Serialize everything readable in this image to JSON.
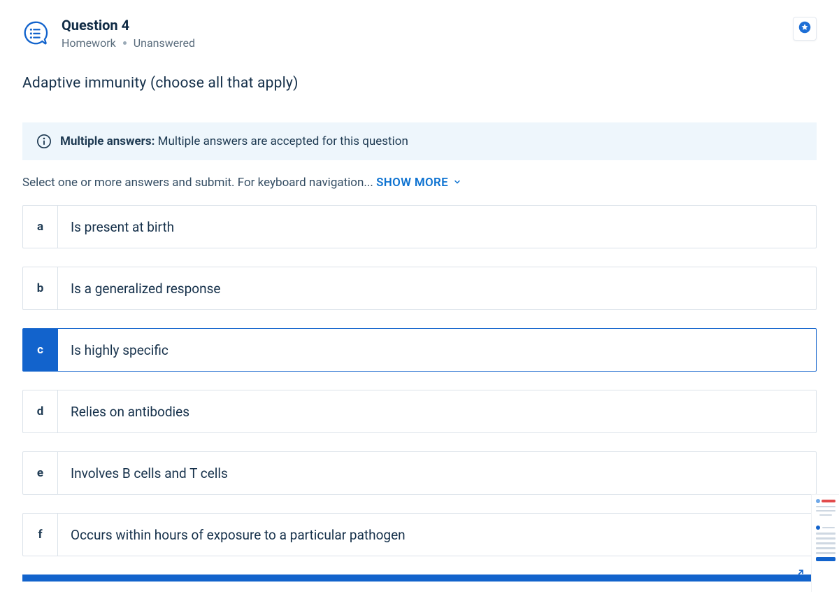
{
  "header": {
    "title": "Question 4",
    "meta_left": "Homework",
    "meta_right": "Unanswered"
  },
  "prompt": "Adaptive immunity (choose all that apply)",
  "info_banner": {
    "label": "Multiple answers:",
    "text": "Multiple answers are accepted for this question"
  },
  "instructions": {
    "text": "Select one or more answers and submit. For keyboard navigation...",
    "show_more": "SHOW MORE"
  },
  "options": [
    {
      "letter": "a",
      "text": "Is present at birth",
      "selected": false
    },
    {
      "letter": "b",
      "text": "Is a generalized response",
      "selected": false
    },
    {
      "letter": "c",
      "text": "Is highly specific",
      "selected": true
    },
    {
      "letter": "d",
      "text": "Relies on antibodies",
      "selected": false
    },
    {
      "letter": "e",
      "text": "Involves B cells and T cells",
      "selected": false
    },
    {
      "letter": "f",
      "text": "Occurs within hours of exposure to a particular pathogen",
      "selected": false
    }
  ],
  "colors": {
    "accent": "#1263cc",
    "banner_bg": "#eef6fc",
    "border": "#dbe2e9",
    "text_primary": "#15304a",
    "text_muted": "#5b6d7d"
  }
}
